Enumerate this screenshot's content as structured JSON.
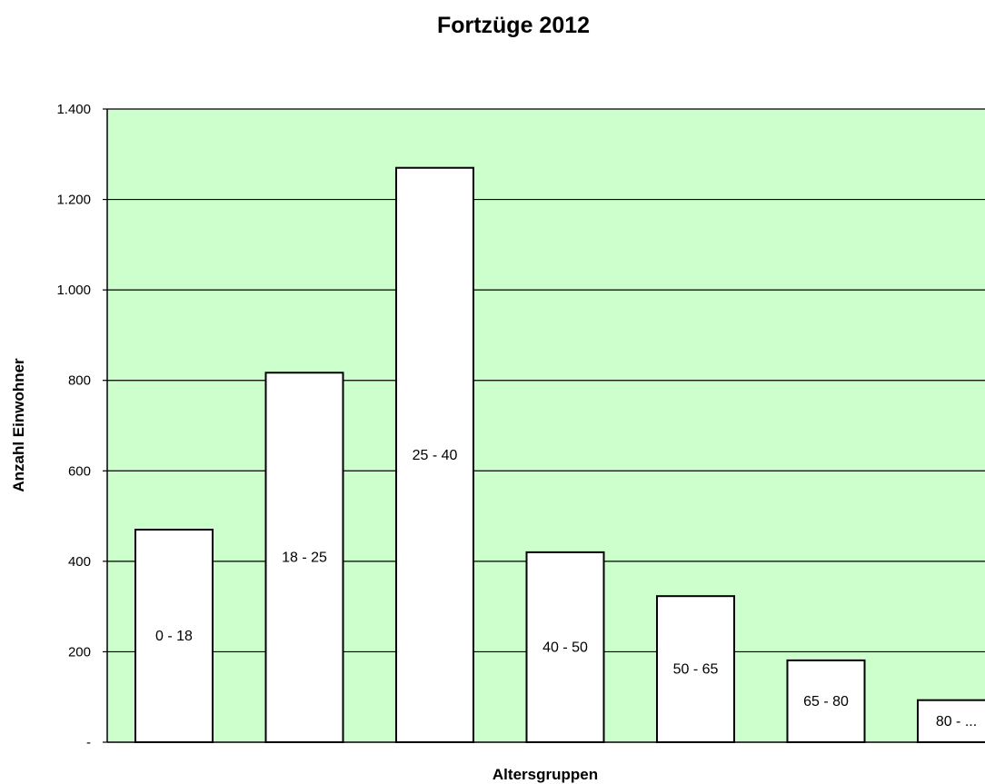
{
  "chart_data": {
    "type": "bar",
    "title": "Fortzüge 2012",
    "xlabel": "Altersgruppen",
    "ylabel": "Anzahl Einwohner",
    "categories": [
      "0 - 18",
      "18 - 25",
      "25 - 40",
      "40 - 50",
      "50 - 65",
      "65 - 80",
      "80 - ..."
    ],
    "values": [
      470,
      817,
      1270,
      420,
      323,
      181,
      93
    ],
    "ylim": [
      0,
      1400
    ],
    "yticks": [
      {
        "value": 0,
        "label": "-"
      },
      {
        "value": 200,
        "label": "200"
      },
      {
        "value": 400,
        "label": "400"
      },
      {
        "value": 600,
        "label": "600"
      },
      {
        "value": 800,
        "label": "800"
      },
      {
        "value": 1000,
        "label": "1.000"
      },
      {
        "value": 1200,
        "label": "1.200"
      },
      {
        "value": 1400,
        "label": "1.400"
      }
    ],
    "grid": true,
    "legend": "none",
    "colors": {
      "plot_background": "#ccffcc",
      "bar_fill": "#ffffff",
      "bar_stroke": "#000000",
      "gridline": "#000000"
    }
  }
}
